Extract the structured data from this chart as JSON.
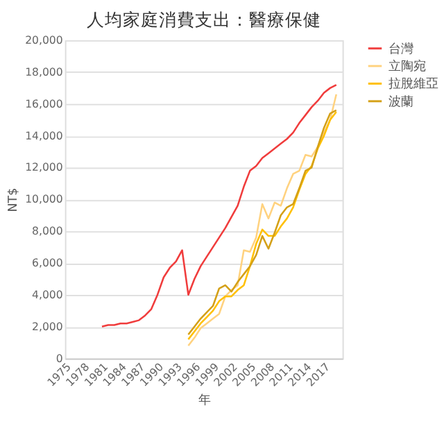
{
  "chart_data": {
    "type": "line",
    "title": "人均家庭消費支出：醫療保健",
    "xlabel": "年",
    "ylabel": "NT$",
    "xlim": [
      1975,
      2020
    ],
    "xticks": [
      1975,
      1978,
      1981,
      1984,
      1987,
      1990,
      1993,
      1996,
      1999,
      2002,
      2005,
      2008,
      2011,
      2014,
      2017
    ],
    "ylim": [
      0,
      20000
    ],
    "yticks": [
      0,
      {
        "value": 2000,
        "label": "2,000"
      },
      {
        "value": 4000,
        "label": "4,000"
      },
      {
        "value": 6000,
        "label": "6,000"
      },
      {
        "value": 8000,
        "label": "8,000"
      },
      {
        "value": 10000,
        "label": "10,000"
      },
      {
        "value": 12000,
        "label": "12,000"
      },
      {
        "value": 14000,
        "label": "14,000"
      },
      {
        "value": 16000,
        "label": "16,000"
      },
      {
        "value": 18000,
        "label": "18,000"
      },
      {
        "value": 20000,
        "label": "20,000"
      }
    ],
    "grid": "y",
    "legend": "right",
    "marker": "none",
    "line_style": "solid",
    "series": [
      {
        "name": "台灣",
        "color": "#f03c3c",
        "x": [
          1981,
          1982,
          1983,
          1984,
          1985,
          1986,
          1987,
          1988,
          1989,
          1990,
          1991,
          1992,
          1993,
          1994,
          1995,
          1996,
          1997,
          1998,
          1999,
          2000,
          2001,
          2002,
          2003,
          2004,
          2005,
          2006,
          2007,
          2008,
          2009,
          2010,
          2011,
          2012,
          2013,
          2014,
          2015,
          2016,
          2017,
          2018,
          2019
        ],
        "values": [
          2000,
          2100,
          2100,
          2200,
          2200,
          2300,
          2400,
          2700,
          3100,
          4000,
          5100,
          5700,
          6100,
          6800,
          4000,
          5000,
          5800,
          6400,
          7000,
          7600,
          8200,
          8900,
          9600,
          10800,
          11800,
          12100,
          12600,
          12900,
          13200,
          13500,
          13800,
          14200,
          14800,
          15300,
          15800,
          16200,
          16700,
          17000,
          17200
        ]
      },
      {
        "name": "立陶宛",
        "color": "#ffd27f",
        "x": [
          1995,
          1996,
          1997,
          1998,
          1999,
          2000,
          2001,
          2002,
          2003,
          2004,
          2005,
          2006,
          2007,
          2008,
          2009,
          2010,
          2011,
          2012,
          2013,
          2014,
          2015,
          2016,
          2017,
          2018,
          2019
        ],
        "values": [
          800,
          1300,
          1900,
          2200,
          2500,
          2800,
          3900,
          4300,
          4600,
          6800,
          6700,
          7600,
          9700,
          8800,
          9800,
          9600,
          10700,
          11600,
          11800,
          12800,
          12700,
          13300,
          14200,
          15000,
          16600
        ]
      },
      {
        "name": "拉脫維亞",
        "color": "#ffc000",
        "x": [
          1995,
          1996,
          1997,
          1998,
          1999,
          2000,
          2001,
          2002,
          2003,
          2004,
          2005,
          2006,
          2007,
          2008,
          2009,
          2010,
          2011,
          2012,
          2013,
          2014,
          2015,
          2016,
          2017,
          2018,
          2019
        ],
        "values": [
          1200,
          1700,
          2200,
          2600,
          3000,
          3600,
          3900,
          3900,
          4300,
          4600,
          5800,
          7200,
          8100,
          7700,
          7700,
          8300,
          8800,
          9500,
          10600,
          11600,
          12100,
          13200,
          14000,
          15000,
          15500
        ]
      },
      {
        "name": "波蘭",
        "color": "#d4a017",
        "x": [
          1995,
          1996,
          1997,
          1998,
          1999,
          2000,
          2001,
          2002,
          2003,
          2004,
          2005,
          2006,
          2007,
          2008,
          2009,
          2010,
          2011,
          2012,
          2013,
          2014,
          2015,
          2016,
          2017,
          2018,
          2019
        ],
        "values": [
          1500,
          2000,
          2500,
          2900,
          3300,
          4400,
          4600,
          4200,
          4800,
          5300,
          5800,
          6500,
          7700,
          6900,
          7900,
          9000,
          9500,
          9700,
          10700,
          11800,
          12000,
          13300,
          14500,
          15400,
          15600
        ]
      }
    ]
  }
}
